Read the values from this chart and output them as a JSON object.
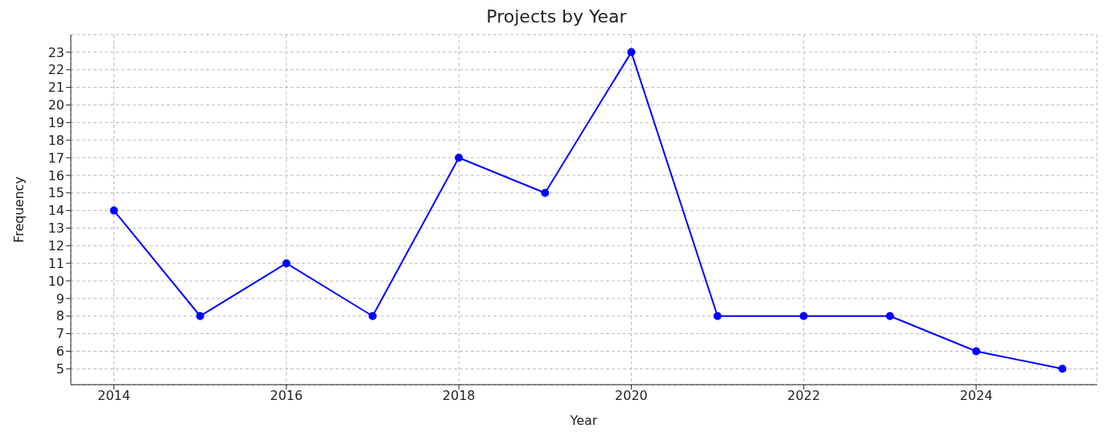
{
  "chart_data": {
    "type": "line",
    "title": "Projects by Year",
    "xlabel": "Year",
    "ylabel": "Frequency",
    "x": [
      2014,
      2015,
      2016,
      2017,
      2018,
      2019,
      2020,
      2021,
      2022,
      2023,
      2024,
      2025
    ],
    "series": [
      {
        "color": "#0000ff",
        "values": [
          14,
          8,
          11,
          8,
          17,
          15,
          23,
          8,
          8,
          8,
          6,
          5
        ]
      }
    ],
    "xlim": [
      2013.5,
      2025.4
    ],
    "xticks": [
      2014,
      2016,
      2018,
      2020,
      2022,
      2024
    ],
    "ylim": [
      4.1,
      24
    ],
    "yticks": [
      5,
      6,
      7,
      8,
      9,
      10,
      11,
      12,
      13,
      14,
      15,
      16,
      17,
      18,
      19,
      20,
      21,
      22,
      23
    ],
    "grid": true,
    "marker": "circle",
    "line_style": "solid"
  }
}
